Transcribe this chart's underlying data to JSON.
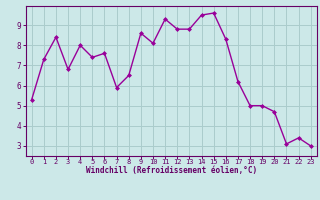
{
  "x": [
    0,
    1,
    2,
    3,
    4,
    5,
    6,
    7,
    8,
    9,
    10,
    11,
    12,
    13,
    14,
    15,
    16,
    17,
    18,
    19,
    20,
    21,
    22,
    23
  ],
  "y": [
    5.3,
    7.3,
    8.4,
    6.8,
    8.0,
    7.4,
    7.6,
    5.9,
    6.5,
    8.6,
    8.1,
    9.3,
    8.8,
    8.8,
    9.5,
    9.6,
    8.3,
    6.2,
    5.0,
    5.0,
    4.7,
    3.1,
    3.4,
    3.0
  ],
  "line_color": "#990099",
  "marker": "D",
  "marker_size": 2,
  "bg_color": "#cce8e8",
  "grid_color": "#aacccc",
  "xlabel": "Windchill (Refroidissement éolien,°C)",
  "xlim": [
    -0.5,
    23.5
  ],
  "ylim": [
    2.5,
    9.95
  ],
  "yticks": [
    3,
    4,
    5,
    6,
    7,
    8,
    9
  ],
  "xticks": [
    0,
    1,
    2,
    3,
    4,
    5,
    6,
    7,
    8,
    9,
    10,
    11,
    12,
    13,
    14,
    15,
    16,
    17,
    18,
    19,
    20,
    21,
    22,
    23
  ],
  "tick_color": "#660066",
  "label_color": "#660066",
  "spine_color": "#660066",
  "font_family": "monospace",
  "tick_fontsize": 5.0,
  "xlabel_fontsize": 5.5,
  "linewidth": 1.0
}
